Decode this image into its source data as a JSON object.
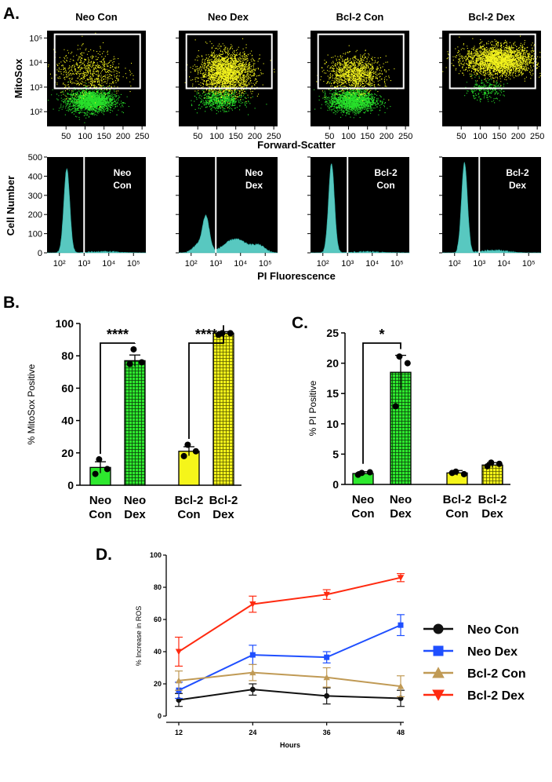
{
  "panel_labels": {
    "a": "A.",
    "b": "B.",
    "c": "C.",
    "d": "D."
  },
  "colors": {
    "neo_con": "#2ee82e",
    "neo_dex": "#2ee82e",
    "bcl2_con": "#f5f51a",
    "bcl2_dex": "#f5f51a",
    "histogram_fill": "#58c8c0",
    "plot_background": "#000000",
    "line_neo_con": "#111111",
    "line_neo_dex": "#1f4fff",
    "line_bcl2_con": "#c09a55",
    "line_bcl2_dex": "#ff2a10"
  },
  "chart_data": [
    {
      "id": "A-top",
      "type": "scatter",
      "description_label": "flow cytometry density plots",
      "ylabel": "MitoSox",
      "xlabel": "Forward-Scatter",
      "x_ticks": [
        "50",
        "100",
        "150",
        "200",
        "250"
      ],
      "y_ticks": [
        "10²",
        "10³",
        "10⁴",
        "10⁵"
      ],
      "xlim": [
        0,
        260
      ],
      "ylim_log10": [
        1.4,
        5.3
      ],
      "gate": {
        "x": [
          20,
          245
        ],
        "y_log10": [
          2.95,
          5.15
        ]
      },
      "panels": [
        {
          "title": "Neo Con",
          "y_label_left": true,
          "populations": [
            {
              "color": "green",
              "n": 2200,
              "cx": 115,
              "cy": 2.45,
              "sx": 30,
              "sy": 0.22
            },
            {
              "color": "yellow",
              "n": 700,
              "cx": 110,
              "cy": 3.6,
              "sx": 45,
              "sy": 0.45
            }
          ]
        },
        {
          "title": "Neo Dex",
          "populations": [
            {
              "color": "green",
              "n": 700,
              "cx": 110,
              "cy": 2.5,
              "sx": 28,
              "sy": 0.2
            },
            {
              "color": "yellow",
              "n": 2400,
              "cx": 125,
              "cy": 3.6,
              "sx": 35,
              "sy": 0.42
            }
          ]
        },
        {
          "title": "Bcl-2 Con",
          "populations": [
            {
              "color": "green",
              "n": 1900,
              "cx": 110,
              "cy": 2.45,
              "sx": 30,
              "sy": 0.22
            },
            {
              "color": "yellow",
              "n": 1300,
              "cx": 115,
              "cy": 3.55,
              "sx": 35,
              "sy": 0.35
            }
          ]
        },
        {
          "title": "Bcl-2 Dex",
          "populations": [
            {
              "color": "green",
              "n": 250,
              "cx": 110,
              "cy": 2.9,
              "sx": 25,
              "sy": 0.2
            },
            {
              "color": "yellow",
              "n": 2800,
              "cx": 150,
              "cy": 4.1,
              "sx": 45,
              "sy": 0.3
            }
          ]
        }
      ]
    },
    {
      "id": "A-bottom",
      "type": "area",
      "description_label": "PI histograms",
      "ylabel": "Cell Number",
      "xlabel": "PI Fluorescence",
      "x_ticks": [
        "10²",
        "10³",
        "10⁴",
        "10⁵"
      ],
      "y_ticks": [
        "0",
        "100",
        "200",
        "300",
        "400",
        "500"
      ],
      "xlim_log10": [
        1.5,
        5.5
      ],
      "ylim": [
        0,
        500
      ],
      "gate_x_log10": 3.0,
      "panels": [
        {
          "label_line1": "Neo",
          "label_line2": "Con",
          "y_label_left": true,
          "peaks": [
            {
              "mu": 2.3,
              "sigma": 0.12,
              "height": 440
            },
            {
              "mu": 3.8,
              "sigma": 0.6,
              "height": 6
            }
          ]
        },
        {
          "label_line1": "Neo",
          "label_line2": "Dex",
          "peaks": [
            {
              "mu": 2.6,
              "sigma": 0.14,
              "height": 185
            },
            {
              "mu": 2.25,
              "sigma": 0.2,
              "height": 40
            },
            {
              "mu": 3.8,
              "sigma": 0.45,
              "height": 72
            },
            {
              "mu": 4.75,
              "sigma": 0.25,
              "height": 35
            }
          ]
        },
        {
          "label_line1": "Bcl-2",
          "label_line2": "Con",
          "peaks": [
            {
              "mu": 2.35,
              "sigma": 0.12,
              "height": 465
            },
            {
              "mu": 3.8,
              "sigma": 0.6,
              "height": 5
            }
          ]
        },
        {
          "label_line1": "Bcl-2",
          "label_line2": "Dex",
          "peaks": [
            {
              "mu": 2.4,
              "sigma": 0.12,
              "height": 470
            },
            {
              "mu": 3.6,
              "sigma": 0.5,
              "height": 14
            }
          ]
        }
      ]
    },
    {
      "id": "B",
      "type": "bar",
      "ylabel": "% MitoSox Positive",
      "ylim": [
        0,
        100
      ],
      "y_ticks": [
        0,
        20,
        40,
        60,
        80,
        100
      ],
      "categories": [
        {
          "line1": "Neo",
          "line2": "Con"
        },
        {
          "line1": "Neo",
          "line2": "Dex"
        },
        {
          "line1": "Bcl-2",
          "line2": "Con"
        },
        {
          "line1": "Bcl-2",
          "line2": "Dex"
        }
      ],
      "values": [
        11,
        77,
        21,
        94
      ],
      "errors": [
        3.5,
        3.5,
        2.8,
        1.0
      ],
      "fills": [
        "solid-green",
        "hatched-green",
        "solid-yellow",
        "hatched-yellow"
      ],
      "points": [
        [
          16,
          10,
          7
        ],
        [
          84,
          76,
          75
        ],
        [
          25,
          21,
          18
        ],
        [
          94,
          94,
          93
        ]
      ],
      "significance": [
        {
          "from": 0,
          "to": 1,
          "label": "****"
        },
        {
          "from": 2,
          "to": 3,
          "label": "****"
        }
      ]
    },
    {
      "id": "C",
      "type": "bar",
      "ylabel": "% PI Positive",
      "ylim": [
        0,
        25
      ],
      "y_ticks": [
        0,
        5,
        10,
        15,
        20,
        25
      ],
      "categories": [
        {
          "line1": "Neo",
          "line2": "Con"
        },
        {
          "line1": "Neo",
          "line2": "Dex"
        },
        {
          "line1": "Bcl-2",
          "line2": "Con"
        },
        {
          "line1": "Bcl-2",
          "line2": "Dex"
        }
      ],
      "values": [
        1.8,
        18.5,
        1.9,
        3.2
      ],
      "errors": [
        0.3,
        2.8,
        0.4,
        0.4
      ],
      "fills": [
        "solid-green",
        "hatched-green",
        "solid-yellow",
        "hatched-yellow"
      ],
      "points": [
        [
          1.9,
          2.0,
          1.6
        ],
        [
          21.1,
          20.0,
          12.9
        ],
        [
          2.1,
          1.7,
          1.9
        ],
        [
          3.6,
          3.4,
          3.0
        ]
      ],
      "significance": [
        {
          "from": 0,
          "to": 1,
          "label": "*"
        }
      ]
    },
    {
      "id": "D",
      "type": "line",
      "xlabel": "Hours",
      "ylabel": "% Increase in ROS",
      "x": [
        12,
        24,
        36,
        48
      ],
      "xlim": [
        12,
        48
      ],
      "ylim": [
        0,
        100
      ],
      "y_ticks": [
        0,
        20,
        40,
        60,
        80,
        100
      ],
      "legend_position": "right",
      "series": [
        {
          "name": "Neo Con",
          "color": "#111111",
          "marker": "circle",
          "values": [
            10,
            16.5,
            12.5,
            11
          ],
          "errors": [
            4,
            3.5,
            5,
            5
          ]
        },
        {
          "name": "Neo Dex",
          "color": "#1f4fff",
          "marker": "square",
          "values": [
            16,
            38,
            36.5,
            56.5
          ],
          "errors": [
            5,
            6,
            3.5,
            6.5
          ]
        },
        {
          "name": "Bcl-2 Con",
          "color": "#c09a55",
          "marker": "triangle-up",
          "values": [
            22,
            27,
            24,
            18.5
          ],
          "errors": [
            6,
            5,
            6,
            6.5
          ]
        },
        {
          "name": "Bcl-2 Dex",
          "color": "#ff2a10",
          "marker": "triangle-down",
          "values": [
            40,
            69.5,
            75.5,
            86
          ],
          "errors": [
            9,
            5,
            3,
            2.5
          ]
        }
      ]
    }
  ]
}
